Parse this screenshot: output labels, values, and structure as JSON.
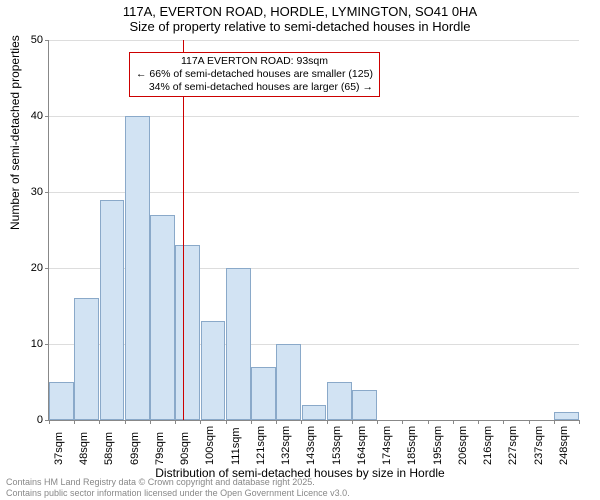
{
  "title": {
    "line1": "117A, EVERTON ROAD, HORDLE, LYMINGTON, SO41 0HA",
    "line2": "Size of property relative to semi-detached houses in Hordle"
  },
  "axes": {
    "ylabel": "Number of semi-detached properties",
    "xlabel": "Distribution of semi-detached houses by size in Hordle",
    "ylim": [
      0,
      50
    ],
    "ytick_step": 10,
    "label_fontsize": 12,
    "tick_fontsize": 11
  },
  "chart": {
    "type": "histogram",
    "x_labels": [
      "37sqm",
      "48sqm",
      "58sqm",
      "69sqm",
      "79sqm",
      "90sqm",
      "100sqm",
      "111sqm",
      "121sqm",
      "132sqm",
      "143sqm",
      "153sqm",
      "164sqm",
      "174sqm",
      "185sqm",
      "195sqm",
      "206sqm",
      "216sqm",
      "227sqm",
      "237sqm",
      "248sqm"
    ],
    "values": [
      5,
      16,
      29,
      40,
      27,
      23,
      13,
      20,
      7,
      10,
      2,
      5,
      4,
      0,
      0,
      0,
      0,
      0,
      0,
      0,
      1
    ],
    "bar_fill": "#d2e3f3",
    "bar_stroke": "#8aa9c9",
    "grid_color": "#dddddd",
    "background": "#ffffff"
  },
  "reference": {
    "value_sqm": 93,
    "line_color": "#cc0000",
    "box": {
      "line1": "117A EVERTON ROAD: 93sqm",
      "line2": "← 66% of semi-detached houses are smaller (125)",
      "line3": "34% of semi-detached houses are larger (65) →",
      "border_color": "#cc0000",
      "background": "#ffffff",
      "fontsize": 10.5
    }
  },
  "footer": {
    "line1": "Contains HM Land Registry data © Crown copyright and database right 2025.",
    "line2": "Contains public sector information licensed under the Open Government Licence v3.0.",
    "color": "#888888"
  }
}
